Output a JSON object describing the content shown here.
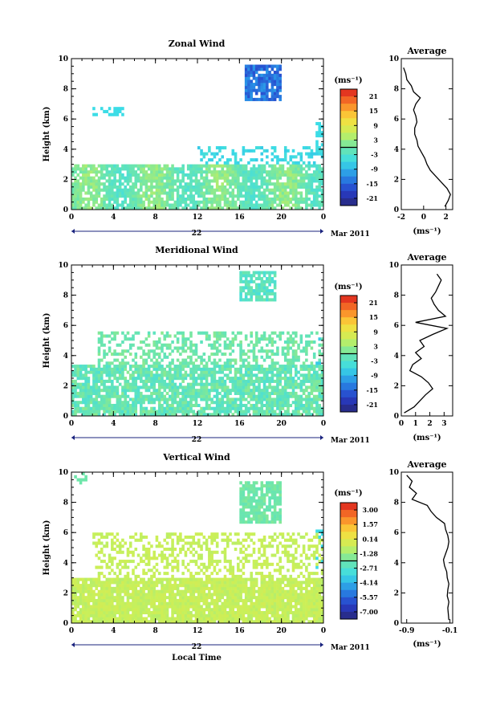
{
  "date_label": "Mar 2011",
  "bottom_xlabel": "Local Time",
  "chart_data": [
    {
      "type": "heatmap",
      "title": "Zonal Wind",
      "ylabel": "Height (km)",
      "xticks": [
        "0",
        "4",
        "8",
        "12",
        "16",
        "20",
        "0"
      ],
      "day_label": "22",
      "xlim": [
        0,
        24
      ],
      "ylim": [
        0,
        10
      ],
      "yticks": [
        "0",
        "2",
        "4",
        "6",
        "8",
        "10"
      ],
      "colorbar": {
        "unit": "(ms⁻¹)",
        "ticks": [
          "21",
          "15",
          "9",
          "3",
          "-3",
          "-9",
          "-15",
          "-21"
        ],
        "range": [
          -24,
          24
        ]
      },
      "profile": {
        "title": "Average",
        "xlabel": "(ms⁻¹)",
        "xticks": [
          "-2",
          "0",
          "2"
        ],
        "xlim": [
          -2,
          2.6
        ],
        "height": [
          0.2,
          0.6,
          1.0,
          1.4,
          1.8,
          2.2,
          2.6,
          3.0,
          3.4,
          3.8,
          4.2,
          4.6,
          5.0,
          5.4,
          5.8,
          6.2,
          6.6,
          7.0,
          7.4,
          7.8,
          8.2,
          8.6,
          9.0,
          9.4
        ],
        "value": [
          1.9,
          2.2,
          2.4,
          2.1,
          1.6,
          1.1,
          0.6,
          0.3,
          0.1,
          -0.2,
          -0.5,
          -0.6,
          -0.8,
          -0.8,
          -0.6,
          -0.7,
          -0.9,
          -0.7,
          -0.3,
          -0.9,
          -1.1,
          -1.5,
          -1.6,
          -1.8
        ]
      }
    },
    {
      "type": "heatmap",
      "title": "Meridional Wind",
      "ylabel": "Height (km)",
      "xticks": [
        "0",
        "4",
        "8",
        "12",
        "16",
        "20",
        "0"
      ],
      "day_label": "22",
      "xlim": [
        0,
        24
      ],
      "ylim": [
        0,
        10
      ],
      "yticks": [
        "0",
        "2",
        "4",
        "6",
        "8",
        "10"
      ],
      "colorbar": {
        "unit": "(ms⁻¹)",
        "ticks": [
          "21",
          "15",
          "9",
          "3",
          "-3",
          "-9",
          "-15",
          "-21"
        ],
        "range": [
          -24,
          24
        ]
      },
      "profile": {
        "title": "Average",
        "xlabel": "(ms⁻¹)",
        "xticks": [
          "0",
          "1",
          "2",
          "3"
        ],
        "xlim": [
          0,
          3.6
        ],
        "height": [
          0.2,
          0.6,
          1.0,
          1.4,
          1.8,
          2.2,
          2.6,
          3.0,
          3.4,
          3.8,
          4.2,
          4.6,
          5.0,
          5.4,
          5.8,
          6.2,
          6.6,
          7.0,
          7.4,
          7.8,
          8.2,
          8.6,
          9.0,
          9.4
        ],
        "value": [
          0.2,
          0.9,
          1.3,
          1.7,
          2.2,
          1.9,
          1.4,
          0.6,
          0.8,
          1.4,
          1.0,
          1.6,
          1.3,
          2.2,
          3.2,
          1.0,
          3.1,
          2.6,
          2.3,
          2.1,
          2.4,
          2.6,
          2.8,
          2.5
        ]
      }
    },
    {
      "type": "heatmap",
      "title": "Vertical Wind",
      "ylabel": "Height (km)",
      "xticks": [
        "0",
        "4",
        "8",
        "12",
        "16",
        "20",
        "0"
      ],
      "day_label": "22",
      "xlim": [
        0,
        24
      ],
      "ylim": [
        0,
        10
      ],
      "yticks": [
        "0",
        "2",
        "4",
        "6",
        "8",
        "10"
      ],
      "colorbar": {
        "unit": "(ms⁻¹)",
        "ticks": [
          "3.00",
          "1.57",
          "0.14",
          "-1.28",
          "-2.71",
          "-4.14",
          "-5.57",
          "-7.00"
        ],
        "range": [
          -7.7,
          3.7
        ]
      },
      "profile": {
        "title": "Average",
        "xlabel": "(ms⁻¹)",
        "xticks": [
          "-0.9",
          "-0.1"
        ],
        "xlim": [
          -1.0,
          -0.05
        ],
        "height": [
          0.2,
          0.6,
          1.0,
          1.4,
          1.8,
          2.2,
          2.6,
          3.0,
          3.4,
          3.8,
          4.2,
          4.6,
          5.0,
          5.4,
          5.8,
          6.2,
          6.6,
          7.0,
          7.4,
          7.8,
          8.2,
          8.6,
          9.0,
          9.4,
          9.8
        ],
        "value": [
          -0.12,
          -0.13,
          -0.14,
          -0.12,
          -0.15,
          -0.14,
          -0.12,
          -0.15,
          -0.16,
          -0.2,
          -0.22,
          -0.18,
          -0.14,
          -0.12,
          -0.14,
          -0.18,
          -0.2,
          -0.35,
          -0.45,
          -0.52,
          -0.8,
          -0.72,
          -0.85,
          -0.8,
          -0.9
        ]
      }
    }
  ]
}
